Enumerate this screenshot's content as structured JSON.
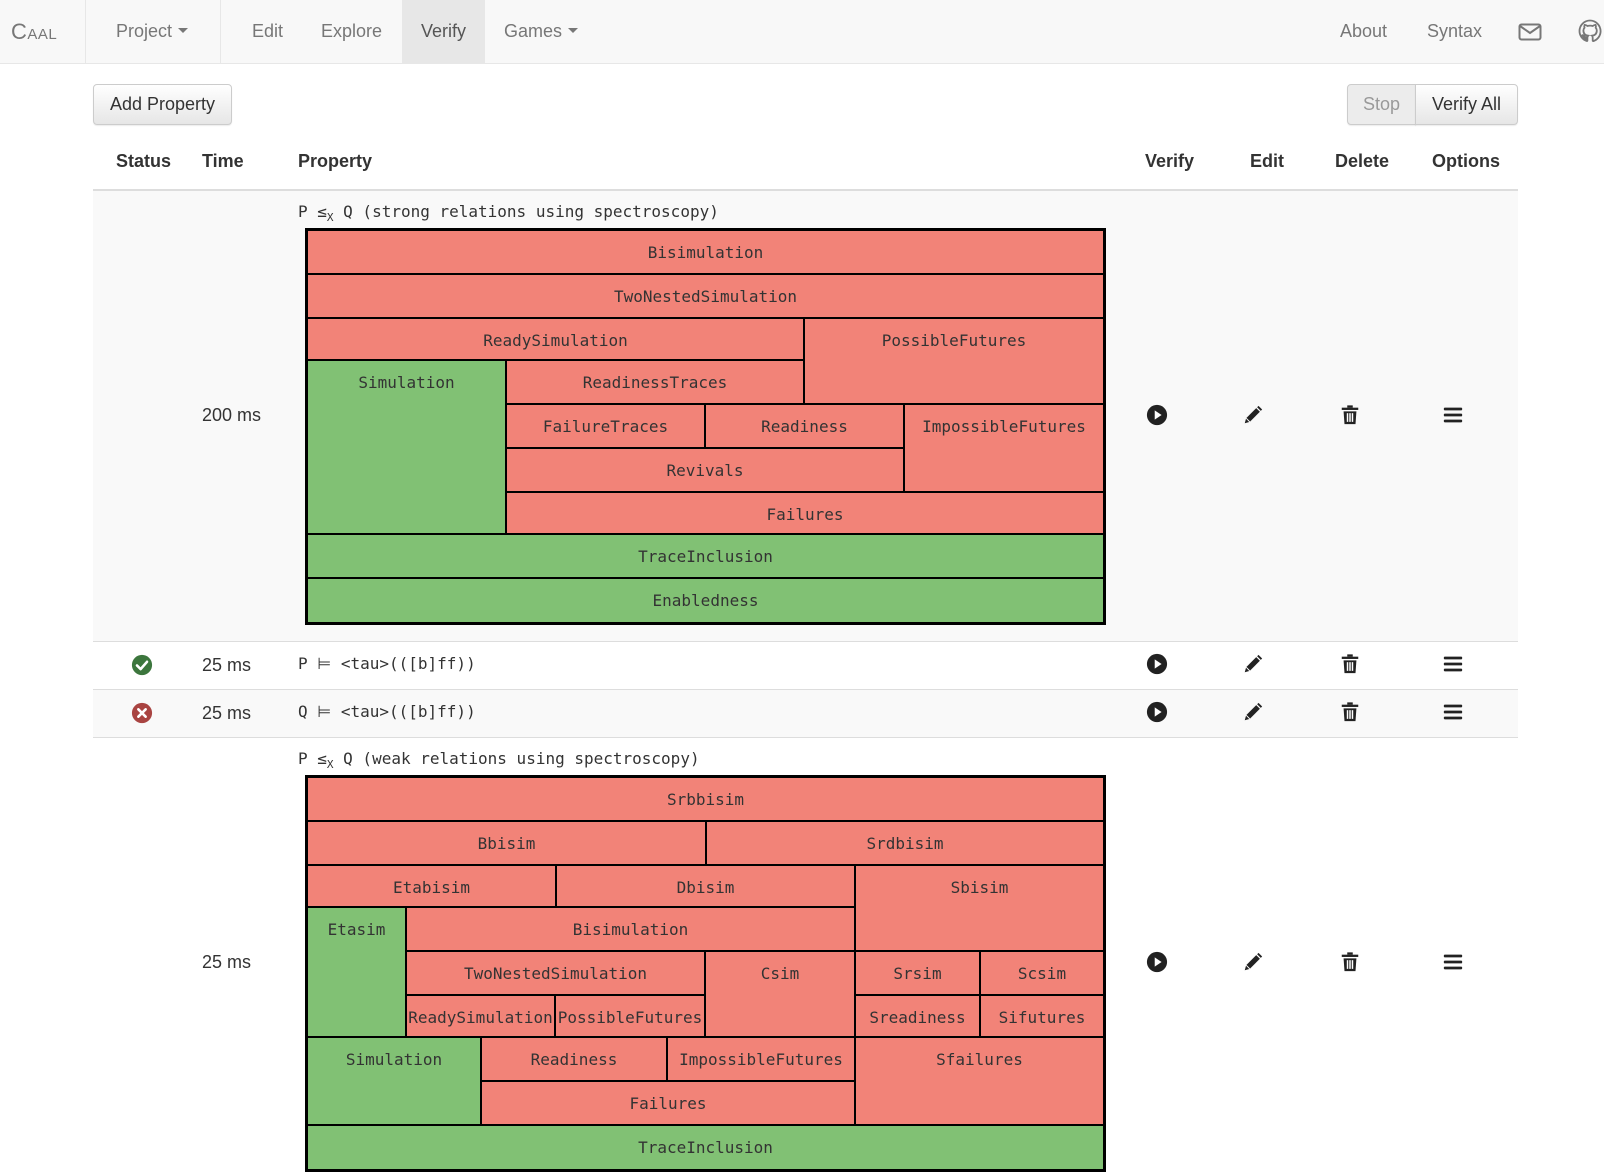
{
  "navbar": {
    "brand": "Caal",
    "project": "Project",
    "edit": "Edit",
    "explore": "Explore",
    "verify": "Verify",
    "games": "Games",
    "about": "About",
    "syntax": "Syntax"
  },
  "toolbar": {
    "add_property": "Add Property",
    "stop": "Stop",
    "verify_all": "Verify All"
  },
  "table": {
    "headers": {
      "status": "Status",
      "time": "Time",
      "property": "Property",
      "verify": "Verify",
      "edit": "Edit",
      "delete": "Delete",
      "options": "Options"
    },
    "rows": [
      {
        "status": "",
        "time": "200 ms",
        "property_prefix": "P ≤",
        "property_sub": "X",
        "property_suffix": " Q (strong relations using spectroscopy)",
        "spectroscopy": [
          {
            "label": "Bisimulation",
            "color": "red"
          },
          {
            "label": "TwoNestedSimulation",
            "color": "red"
          },
          {
            "label": "ReadySimulation",
            "color": "red"
          },
          {
            "label": "PossibleFutures",
            "color": "red"
          },
          {
            "label": "Simulation",
            "color": "green"
          },
          {
            "label": "ReadinessTraces",
            "color": "red"
          },
          {
            "label": "FailureTraces",
            "color": "red"
          },
          {
            "label": "Readiness",
            "color": "red"
          },
          {
            "label": "ImpossibleFutures",
            "color": "red"
          },
          {
            "label": "Revivals",
            "color": "red"
          },
          {
            "label": "Failures",
            "color": "red"
          },
          {
            "label": "TraceInclusion",
            "color": "green"
          },
          {
            "label": "Enabledness",
            "color": "green"
          }
        ]
      },
      {
        "status": "success",
        "time": "25 ms",
        "property": "P ⊨ <tau>(([b]ff))"
      },
      {
        "status": "failure",
        "time": "25 ms",
        "property": "Q ⊨ <tau>(([b]ff))"
      },
      {
        "status": "",
        "time": "25 ms",
        "property_prefix": "P ≤",
        "property_sub": "X",
        "property_suffix": " Q (weak relations using spectroscopy)",
        "spectroscopy": [
          {
            "label": "Srbbisim",
            "color": "red"
          },
          {
            "label": "Bbisim",
            "color": "red"
          },
          {
            "label": "Srdbisim",
            "color": "red"
          },
          {
            "label": "Etabisim",
            "color": "red"
          },
          {
            "label": "Dbisim",
            "color": "red"
          },
          {
            "label": "Sbisim",
            "color": "red"
          },
          {
            "label": "Etasim",
            "color": "green"
          },
          {
            "label": "Bisimulation",
            "color": "red"
          },
          {
            "label": "TwoNestedSimulation",
            "color": "red"
          },
          {
            "label": "Csim",
            "color": "red"
          },
          {
            "label": "Srsim",
            "color": "red"
          },
          {
            "label": "Scsim",
            "color": "red"
          },
          {
            "label": "ReadySimulation",
            "color": "red"
          },
          {
            "label": "PossibleFutures",
            "color": "red"
          },
          {
            "label": "Sreadiness",
            "color": "red"
          },
          {
            "label": "Sifutures",
            "color": "red"
          },
          {
            "label": "Simulation",
            "color": "green"
          },
          {
            "label": "Readiness",
            "color": "red"
          },
          {
            "label": "ImpossibleFutures",
            "color": "red"
          },
          {
            "label": "Sfailures",
            "color": "red"
          },
          {
            "label": "Failures",
            "color": "red"
          },
          {
            "label": "TraceInclusion",
            "color": "green"
          }
        ]
      }
    ]
  },
  "colors": {
    "failed_relation": "#f28378",
    "held_relation": "#81c174",
    "success_icon": "#3c763d",
    "failure_icon": "#a94442"
  },
  "icons": [
    "play-icon",
    "pencil-icon",
    "trash-icon",
    "menu-icon",
    "check-circle-icon",
    "x-circle-icon",
    "envelope-icon",
    "github-icon"
  ]
}
